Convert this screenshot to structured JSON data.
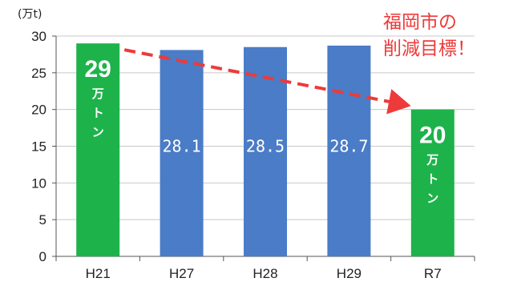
{
  "chart_data": {
    "type": "bar",
    "unit_label": "(万t)",
    "categories": [
      "H21",
      "H27",
      "H28",
      "H29",
      "R7"
    ],
    "values": [
      29,
      28.1,
      28.5,
      28.7,
      20
    ],
    "bar_labels": [
      {
        "number": "29",
        "unit_chars": [
          "万",
          "ト",
          "ン"
        ]
      },
      {
        "number": "28.1"
      },
      {
        "number": "28.5"
      },
      {
        "number": "28.7"
      },
      {
        "number": "20",
        "unit_chars": [
          "万",
          "ト",
          "ン"
        ]
      }
    ],
    "bar_colors": [
      "#1db34a",
      "#4a7cc7",
      "#4a7cc7",
      "#4a7cc7",
      "#1db34a"
    ],
    "ylim": [
      0,
      30
    ],
    "yticks": [
      0,
      5,
      10,
      15,
      20,
      25,
      30
    ],
    "grid": true,
    "annotation": {
      "lines": [
        "福岡市の",
        "削減目標！"
      ],
      "color": "#ee3a3a",
      "arrow_from_category": "H21",
      "arrow_to_category": "R7"
    }
  }
}
